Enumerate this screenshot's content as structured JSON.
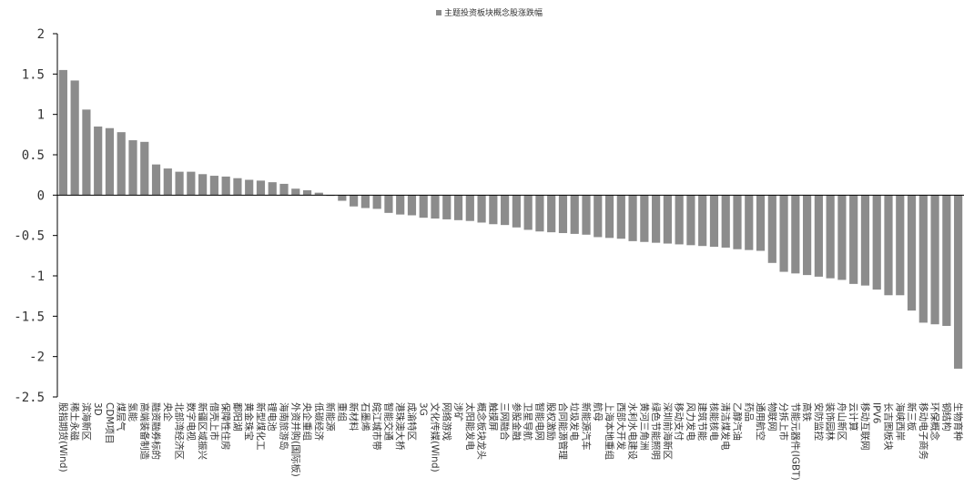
{
  "colors": {
    "bar": "#8c8c8c",
    "axis": "#000000",
    "text": "#333333"
  },
  "chart_data": {
    "type": "bar",
    "title": "",
    "xlabel": "",
    "ylabel": "",
    "ylim": [
      -2.5,
      2
    ],
    "yticks": [
      2,
      1.5,
      1,
      0.5,
      0,
      -0.5,
      -1,
      -1.5,
      -2,
      -2.5
    ],
    "ytick_labels": [
      "2",
      "1.5",
      "1",
      "0.5",
      "0",
      "-0.5",
      "-1",
      "-1.5",
      "-2",
      "-2.5"
    ],
    "grid": false,
    "legend_position": "top-center",
    "series": [
      {
        "name": "主题投资板块概念股涨跌幅"
      }
    ],
    "categories": [
      "股指期货(Wind)",
      "稀土永磁",
      "滨海新区",
      "3D",
      "CDM项目",
      "煤层气",
      "氢能",
      "高端装备制造",
      "融资融券标的",
      "央企",
      "北部湾经济区",
      "数字电视",
      "新疆区域振兴",
      "借壳上市",
      "保障性住房",
      "鄱阳湖",
      "黄金珠宝",
      "新型煤化工",
      "锂电池",
      "海南旅游岛",
      "外资并购(国际板)",
      "央企重组",
      "低碳经济",
      "新能源",
      "重组",
      "新材料",
      "石墨烯",
      "皖江城市带",
      "智能交通",
      "港珠澳大桥",
      "成渝特区",
      "3G",
      "文化传媒(Wind)",
      "网络游戏",
      "涉矿",
      "太阳能发电",
      "概念板块龙头",
      "触摸屏",
      "三网融合",
      "参股金融",
      "卫星导航",
      "智能电网",
      "股权激励",
      "合同能源管理",
      "垃圾发电",
      "新能源汽车",
      "航母",
      "上海本地重组",
      "西部大开发",
      "水利水电建设",
      "黄河三角洲",
      "绿色节能照明",
      "深圳前海新区",
      "移动支付",
      "风力发电",
      "建筑节能",
      "核能核电",
      "清洁煤发电",
      "乙醇汽油",
      "药品",
      "通用航空",
      "物联网",
      "分拆上市",
      "节能元器件(IGBT)",
      "高铁",
      "安防监控",
      "装饰园林",
      "舟山新区",
      "云计算",
      "移动互联网",
      "IPV6",
      "长吉图板块",
      "海峡西岸",
      "新三板",
      "移动电子商务",
      "环保概念",
      "钢结构",
      "生物育种"
    ],
    "values": [
      1.55,
      1.42,
      1.06,
      0.85,
      0.83,
      0.78,
      0.68,
      0.66,
      0.38,
      0.33,
      0.29,
      0.29,
      0.26,
      0.24,
      0.23,
      0.21,
      0.19,
      0.18,
      0.16,
      0.14,
      0.08,
      0.06,
      0.03,
      -0.01,
      -0.07,
      -0.14,
      -0.16,
      -0.17,
      -0.22,
      -0.24,
      -0.25,
      -0.28,
      -0.29,
      -0.3,
      -0.31,
      -0.32,
      -0.34,
      -0.36,
      -0.37,
      -0.4,
      -0.43,
      -0.45,
      -0.46,
      -0.47,
      -0.48,
      -0.49,
      -0.52,
      -0.53,
      -0.54,
      -0.57,
      -0.58,
      -0.59,
      -0.6,
      -0.61,
      -0.62,
      -0.63,
      -0.64,
      -0.65,
      -0.67,
      -0.68,
      -0.69,
      -0.84,
      -0.95,
      -0.97,
      -0.99,
      -1.01,
      -1.03,
      -1.05,
      -1.1,
      -1.12,
      -1.17,
      -1.24,
      -1.24,
      -1.43,
      -1.58,
      -1.6,
      -1.62,
      -2.15
    ]
  }
}
